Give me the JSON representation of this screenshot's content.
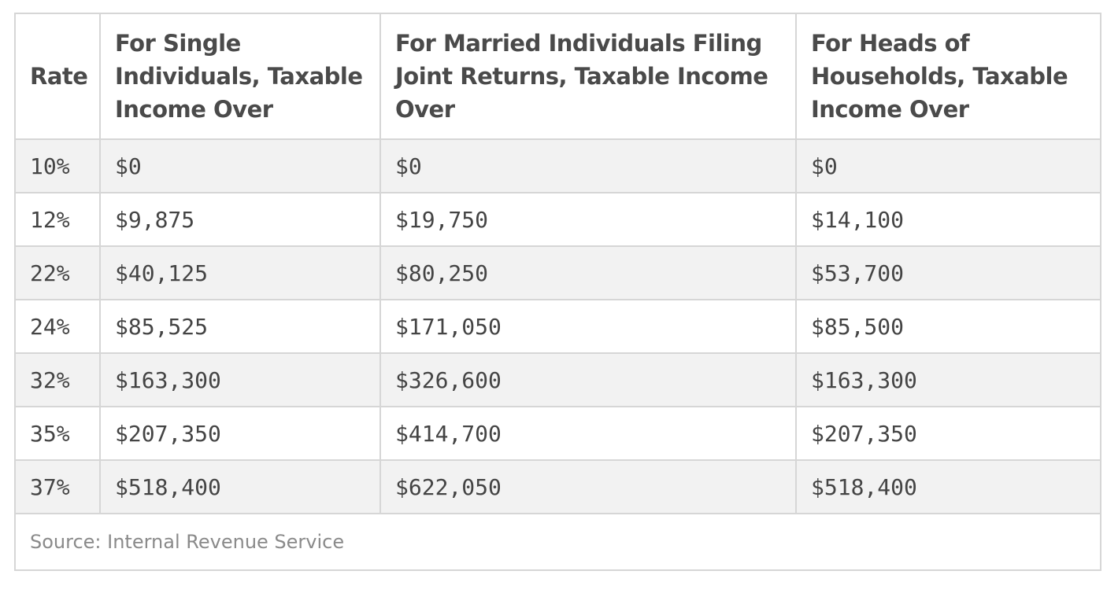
{
  "table": {
    "headers": [
      "Rate",
      "For Single Individuals, Taxable Income Over",
      "For Married Individuals Filing Joint Returns, Taxable Income Over",
      "For Heads of Households, Taxable Income Over"
    ],
    "rows": [
      [
        "10%",
        "$0",
        "$0",
        "$0"
      ],
      [
        "12%",
        "$9,875",
        "$19,750",
        "$14,100"
      ],
      [
        "22%",
        "$40,125",
        "$80,250",
        "$53,700"
      ],
      [
        "24%",
        "$85,525",
        "$171,050",
        "$85,500"
      ],
      [
        "32%",
        "$163,300",
        "$326,600",
        "$163,300"
      ],
      [
        "35%",
        "$207,350",
        "$414,700",
        "$207,350"
      ],
      [
        "37%",
        "$518,400",
        "$622,050",
        "$518,400"
      ]
    ],
    "source": "Source: Internal Revenue Service"
  },
  "colors": {
    "border": "#d6d6d6",
    "stripe": "#f2f2f2",
    "text": "#444444",
    "source_text": "#8a8a8a"
  }
}
